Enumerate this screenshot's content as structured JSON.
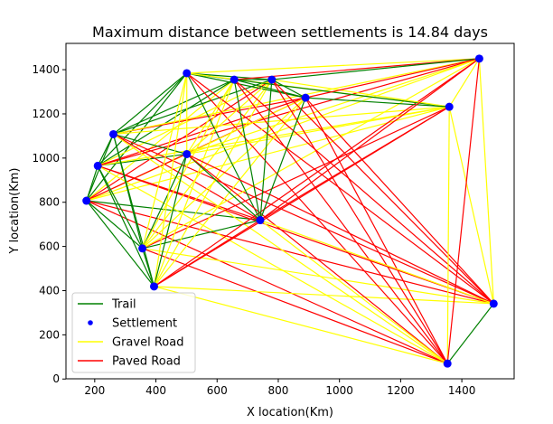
{
  "chart_data": {
    "type": "line",
    "title": "Maximum distance between settlements is 14.84 days",
    "xlabel": "X location(Km)",
    "ylabel": "Y location(Km)",
    "xlim": [
      106,
      1571
    ],
    "ylim": [
      1,
      1519
    ],
    "xticks": [
      200,
      400,
      600,
      800,
      1000,
      1200,
      1400
    ],
    "yticks": [
      0,
      200,
      400,
      600,
      800,
      1000,
      1200,
      1400
    ],
    "grid": false,
    "legend_position": "lower-left",
    "legend": [
      {
        "label": "Trail",
        "kind": "line",
        "color": "#008000"
      },
      {
        "label": "Settlement",
        "kind": "marker",
        "color": "#0000ff"
      },
      {
        "label": "Gravel Road",
        "kind": "line",
        "color": "#ffff00"
      },
      {
        "label": "Paved Road",
        "kind": "line",
        "color": "#ff0000"
      }
    ],
    "edge_colors": {
      "T": "#008000",
      "G": "#ffff00",
      "P": "#ff0000"
    },
    "settlements": [
      [
        173,
        807
      ],
      [
        210,
        965
      ],
      [
        261,
        1108
      ],
      [
        356,
        591
      ],
      [
        394,
        419
      ],
      [
        501,
        1384
      ],
      [
        501,
        1018
      ],
      [
        656,
        1355
      ],
      [
        779,
        1355
      ],
      [
        889,
        1273
      ],
      [
        741,
        719
      ],
      [
        1359,
        1232
      ],
      [
        1457,
        1450
      ],
      [
        1504,
        341
      ],
      [
        1353,
        70
      ]
    ],
    "edge_types_upper_triangle": [
      "TTTTTGGPPTGGPP",
      "TTTTTTGPPGPPG",
      "TTTTTTPPGGPG",
      "TGTGGGTPGGP",
      "GTGGGPPPGG",
      "GTTTTGGPP",
      "GGGTGGPP",
      "TTTTPPP",
      "TTGTPP",
      "TTPPP",
      "PPGG",
      "GGG",
      "GP",
      "T"
    ]
  }
}
